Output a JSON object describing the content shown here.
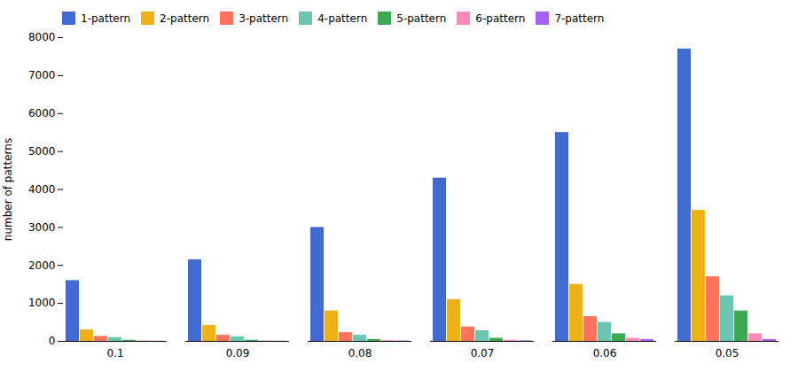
{
  "chart_data": {
    "type": "bar",
    "categories": [
      "0.1",
      "0.09",
      "0.08",
      "0.07",
      "0.06",
      "0.05"
    ],
    "series": [
      {
        "name": "1-pattern",
        "values": [
          1600,
          2150,
          3000,
          4300,
          5500,
          7700
        ]
      },
      {
        "name": "2-pattern",
        "values": [
          300,
          420,
          800,
          1100,
          1500,
          3450
        ]
      },
      {
        "name": "3-pattern",
        "values": [
          130,
          160,
          230,
          380,
          650,
          1700
        ]
      },
      {
        "name": "4-pattern",
        "values": [
          100,
          120,
          160,
          280,
          500,
          1200
        ]
      },
      {
        "name": "5-pattern",
        "values": [
          30,
          30,
          50,
          80,
          200,
          800
        ]
      },
      {
        "name": "6-pattern",
        "values": [
          10,
          10,
          20,
          30,
          80,
          200
        ]
      },
      {
        "name": "7-pattern",
        "values": [
          5,
          5,
          10,
          15,
          50,
          50
        ]
      }
    ],
    "ylabel": "number of patterns",
    "ylim": [
      0,
      8000
    ],
    "yticks": [
      0,
      1000,
      2000,
      3000,
      4000,
      5000,
      6000,
      7000,
      8000
    ],
    "grid": false,
    "legend": "upper left"
  }
}
